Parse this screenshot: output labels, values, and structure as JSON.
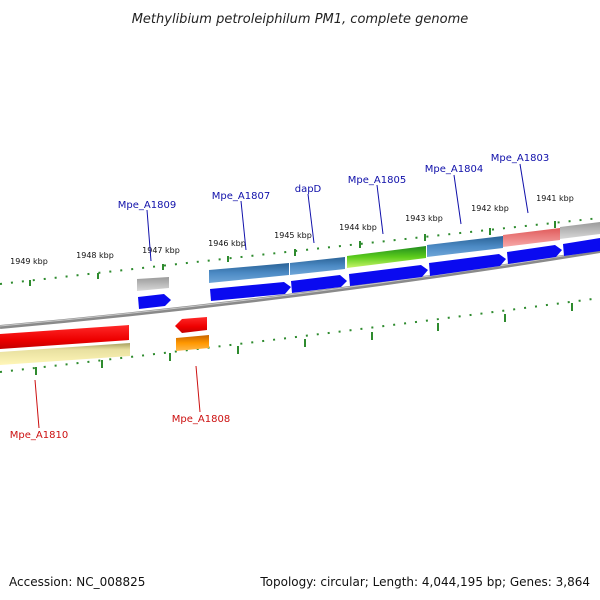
{
  "title": "Methylibium petroleiphilum PM1, complete genome",
  "footer": {
    "accession": "Accession: NC_008825",
    "topology": "Topology: circular; Length: 4,044,195 bp; Genes: 3,864"
  },
  "colors": {
    "backbone": "#777777",
    "tick": "#2e8b2e",
    "upper_label": "#1010aa",
    "lower_label": "#cc1010",
    "cds": "#0a0af0"
  },
  "tick_labels": [
    "1949 kbp",
    "1948 kbp",
    "1947 kbp",
    "1946 kbp",
    "1945 kbp",
    "1944 kbp",
    "1943 kbp",
    "1942 kbp",
    "1941 kbp"
  ],
  "genes_upper": [
    {
      "name": "Mpe_A1809"
    },
    {
      "name": "Mpe_A1807"
    },
    {
      "name": "dapD"
    },
    {
      "name": "Mpe_A1805"
    },
    {
      "name": "Mpe_A1804"
    },
    {
      "name": "Mpe_A1803"
    }
  ],
  "genes_lower": [
    {
      "name": "Mpe_A1810"
    },
    {
      "name": "Mpe_A1808"
    }
  ]
}
